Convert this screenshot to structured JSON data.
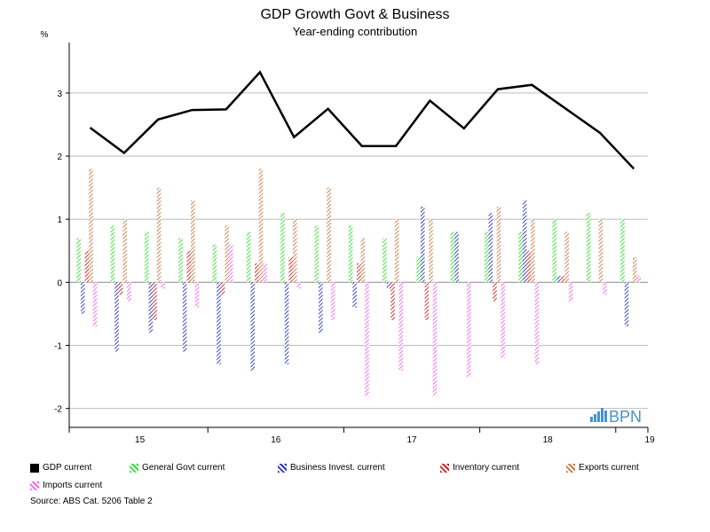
{
  "chart_data": {
    "type": "bar",
    "title": "GDP Growth Govt & Business",
    "subtitle": "Year-ending contribution",
    "ylabel": "%",
    "ylim": [
      -2.3,
      3.8
    ],
    "yticks": [
      -2,
      -1,
      0,
      1,
      2,
      3
    ],
    "year_labels": [
      "15",
      "16",
      "17",
      "18",
      "19"
    ],
    "year_quarter_index": [
      1.5,
      5.5,
      9.5,
      13.5,
      16.5
    ],
    "year_boundaries": [
      3.5,
      7.5,
      11.5,
      15.5
    ],
    "quarters": 17,
    "grid": true,
    "legend_position": "bottom",
    "line_series": {
      "name": "GDP current",
      "color": "#000000",
      "values": [
        2.45,
        2.05,
        2.58,
        2.73,
        2.74,
        3.33,
        2.3,
        2.75,
        2.16,
        2.16,
        2.88,
        2.44,
        3.06,
        3.13,
        2.75,
        2.37,
        1.8
      ]
    },
    "series": [
      {
        "name": "General Govt current",
        "color": "#33dd33",
        "values": [
          0.7,
          0.9,
          0.8,
          0.7,
          0.6,
          0.8,
          1.1,
          0.9,
          0.9,
          0.7,
          0.4,
          0.8,
          0.8,
          0.8,
          1.0,
          1.1,
          1.0
        ]
      },
      {
        "name": "Business Invest. current",
        "color": "#2a35b8",
        "values": [
          -0.5,
          -1.1,
          -0.8,
          -1.1,
          -1.3,
          -1.4,
          -1.3,
          -0.8,
          -0.4,
          -0.1,
          1.2,
          0.8,
          1.1,
          1.3,
          0.1,
          0.0,
          -0.7
        ]
      },
      {
        "name": "Inventory current",
        "color": "#cc2222",
        "values": [
          0.5,
          -0.2,
          -0.6,
          0.5,
          -0.2,
          0.3,
          0.4,
          0.0,
          0.3,
          -0.6,
          -0.6,
          0.0,
          -0.3,
          0.5,
          0.1,
          0.0,
          0.0
        ]
      },
      {
        "name": "Exports current",
        "color": "#c87a45",
        "values": [
          1.8,
          1.0,
          1.5,
          1.3,
          0.9,
          1.8,
          1.0,
          1.5,
          0.7,
          1.0,
          1.0,
          0.0,
          1.2,
          1.0,
          0.8,
          1.0,
          0.4
        ]
      },
      {
        "name": "Imports current",
        "color": "#ee66ee",
        "values": [
          -0.7,
          -0.3,
          -0.1,
          -0.4,
          0.6,
          0.3,
          -0.1,
          -0.6,
          -1.8,
          -1.4,
          -1.8,
          -1.5,
          -1.2,
          -1.3,
          -0.3,
          -0.2,
          0.1
        ]
      }
    ]
  },
  "watermark": {
    "text": "BPN",
    "color": "#4a90c8"
  },
  "source": "Source: ABS Cat. 5206 Table 2"
}
